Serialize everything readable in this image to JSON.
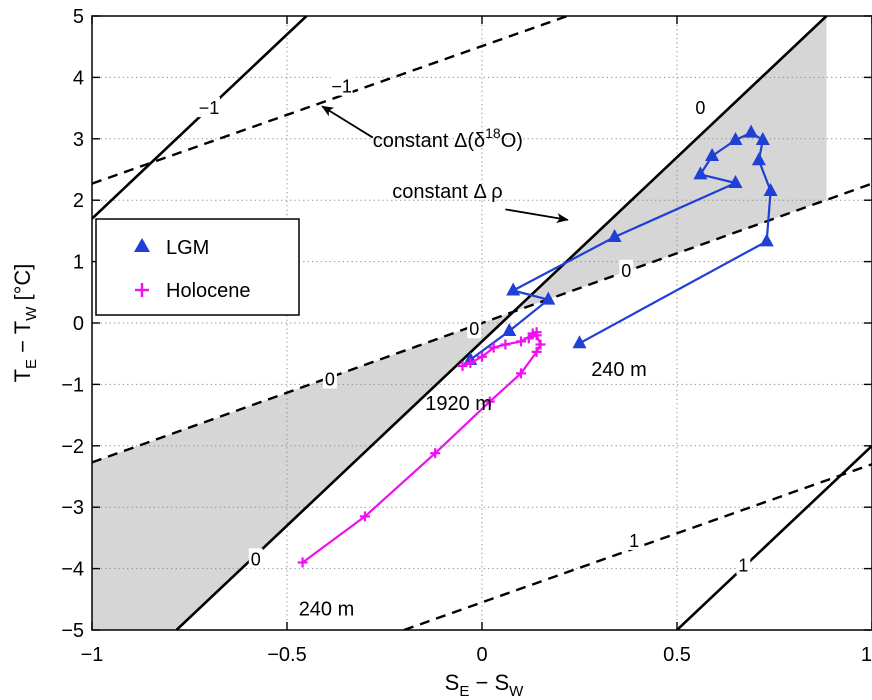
{
  "chart_data": {
    "type": "line",
    "xlabel": {
      "main": "S",
      "sub1": "E",
      "dash": " − ",
      "main2": "S",
      "sub2": "W"
    },
    "ylabel": {
      "main": "T",
      "sub1": "E",
      "dash": " − ",
      "main2": "T",
      "sub2": "W",
      "unit": "  [°C]"
    },
    "xlim": [
      -1,
      1
    ],
    "ylim": [
      -5,
      5
    ],
    "xticks": [
      -1,
      -0.5,
      0,
      0.5,
      1
    ],
    "yticks": [
      -5,
      -4,
      -3,
      -2,
      -1,
      0,
      1,
      2,
      3,
      4,
      5
    ],
    "xtick_labels": [
      "−1",
      "−0.5",
      "0",
      "0.5",
      "1"
    ],
    "ytick_labels": [
      "−5",
      "−4",
      "−3",
      "−2",
      "−1",
      "0",
      "1",
      "2",
      "3",
      "4",
      "5"
    ],
    "grid": true,
    "legend_position": "left",
    "series": [
      {
        "name": "LGM",
        "color": "#1f3fd6",
        "marker": "triangle",
        "x": [
          0.25,
          0.73,
          0.74,
          0.71,
          0.72,
          0.69,
          0.65,
          0.59,
          0.56,
          0.65,
          0.34,
          0.08,
          0.17,
          0.07,
          -0.03
        ],
        "y": [
          -0.33,
          1.33,
          2.15,
          2.65,
          2.98,
          3.1,
          2.98,
          2.72,
          2.42,
          2.28,
          1.4,
          0.53,
          0.38,
          -0.13,
          -0.6
        ]
      },
      {
        "name": "Holocene",
        "color": "#ee11ee",
        "marker": "plus",
        "x": [
          -0.46,
          -0.3,
          -0.12,
          0.02,
          0.1,
          0.14,
          0.15,
          0.14,
          0.12,
          0.13,
          0.14,
          0.1,
          0.06,
          0.03,
          0.0,
          -0.03,
          -0.05
        ],
        "y": [
          -3.9,
          -3.15,
          -2.12,
          -1.28,
          -0.82,
          -0.47,
          -0.35,
          -0.2,
          -0.25,
          -0.17,
          -0.15,
          -0.3,
          -0.35,
          -0.4,
          -0.55,
          -0.65,
          -0.7
        ]
      }
    ],
    "reference_lines": {
      "solid": [
        {
          "label": "−1",
          "x": [
            -1.0,
            -0.45
          ],
          "y": [
            1.7,
            5.0
          ]
        },
        {
          "label": "0",
          "x": [
            -0.7833,
            0.8833
          ],
          "y": [
            -5.0,
            5.0
          ]
        },
        {
          "label": "1",
          "x": [
            0.5,
            1.0
          ],
          "y": [
            -5.0,
            -2.0
          ]
        }
      ],
      "dashed": [
        {
          "label": "−1",
          "x": [
            -1.0,
            1.0
          ],
          "y": [
            2.27,
            6.75
          ]
        },
        {
          "label": "0",
          "x": [
            -1.0,
            1.0
          ],
          "y": [
            -2.27,
            2.27
          ]
        },
        {
          "label": "1",
          "x": [
            -0.2,
            1.0
          ],
          "y": [
            -5.0,
            -2.3
          ]
        }
      ]
    },
    "shaded_region_color": "#d6d6d6",
    "contour_labels": [
      {
        "text": "−1",
        "x": -0.7,
        "y": 3.5
      },
      {
        "text": "−1",
        "x": -0.36,
        "y": 3.85
      },
      {
        "text": "0",
        "x": 0.56,
        "y": 3.5
      },
      {
        "text": "0",
        "x": 0.37,
        "y": 0.85
      },
      {
        "text": "0",
        "x": -0.02,
        "y": -0.1
      },
      {
        "text": "0",
        "x": -0.39,
        "y": -0.92
      },
      {
        "text": "0",
        "x": -0.58,
        "y": -3.85
      },
      {
        "text": "1",
        "x": 0.39,
        "y": -3.55
      },
      {
        "text": "1",
        "x": 0.67,
        "y": -3.95
      }
    ],
    "annotations": {
      "iso_label_pre": "constant Δ(δ",
      "iso_label_sup": "18",
      "iso_label_post": "O)",
      "iso_label_pos": {
        "x": -0.28,
        "y": 2.98
      },
      "iso_arrow_from": {
        "x": -0.28,
        "y": 3.02
      },
      "iso_arrow_to": {
        "x": -0.41,
        "y": 3.53
      },
      "density_label": "constant Δ ρ",
      "density_label_pos": {
        "x": -0.23,
        "y": 2.15
      },
      "density_arrow_from": {
        "x": 0.06,
        "y": 1.85
      },
      "density_arrow_to": {
        "x": 0.22,
        "y": 1.68
      },
      "lgm_start_label": "240 m",
      "lgm_start_label_pos": {
        "x": 0.28,
        "y": -0.75
      },
      "lgm_end_label": "1920 m",
      "lgm_end_label_pos": {
        "x": -0.06,
        "y": -1.3
      },
      "holo_start_label": "240 m",
      "holo_start_label_pos": {
        "x": -0.47,
        "y": -4.65
      }
    }
  }
}
